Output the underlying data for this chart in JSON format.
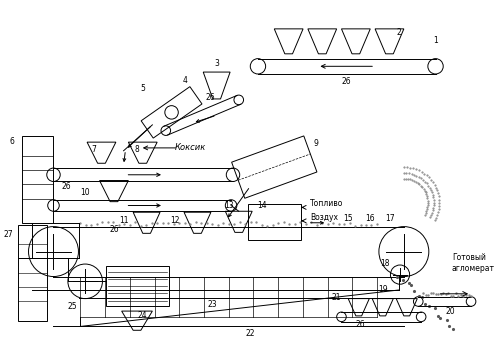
{
  "bg_color": "#ffffff",
  "line_color": "#000000",
  "fig_width": 5.0,
  "fig_height": 3.41,
  "dpi": 100,
  "text_Koksik": "Коксик",
  "text_Toplivo": "Топливо",
  "text_Vozduh": "Воздух",
  "text_Gotovy": "Готовый\nагломерат",
  "fs_num": 5.5,
  "fs_lbl": 6.0,
  "lw": 0.7
}
